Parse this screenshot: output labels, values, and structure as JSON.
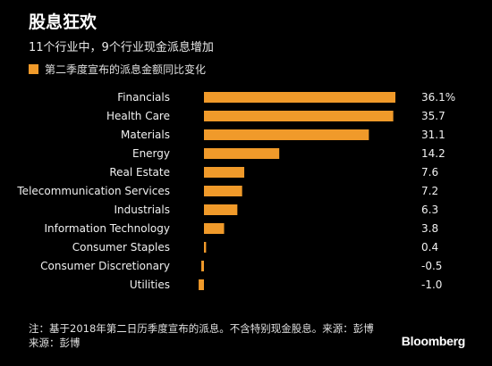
{
  "header": {
    "title": "股息狂欢",
    "subtitle": "11个行业中，9个行业现金派息增加"
  },
  "legend": {
    "label": "第二季度宣布的派息金额同比变化",
    "color": "#f09a2a"
  },
  "chart_data": {
    "type": "bar",
    "orientation": "horizontal",
    "categories": [
      "Financials",
      "Health Care",
      "Materials",
      "Energy",
      "Real Estate",
      "Telecommunication Services",
      "Industrials",
      "Information Technology",
      "Consumer Staples",
      "Consumer Discretionary",
      "Utilities"
    ],
    "values": [
      36.1,
      35.7,
      31.1,
      14.2,
      7.6,
      7.2,
      6.3,
      3.8,
      0.4,
      -0.5,
      -1.0
    ],
    "value_labels": [
      "36.1%",
      "35.7",
      "31.1",
      "14.2",
      "7.6",
      "7.2",
      "6.3",
      "3.8",
      "0.4",
      "-0.5",
      "-1.0"
    ],
    "bar_color": "#f09a2a",
    "grid": false,
    "axes_visible": false
  },
  "footer": {
    "note": "注：基于2018年第二日历季度宣布的派息。不含特别现金股息。来源：彭博",
    "source": "来源：彭博",
    "brand": "Bloomberg"
  }
}
